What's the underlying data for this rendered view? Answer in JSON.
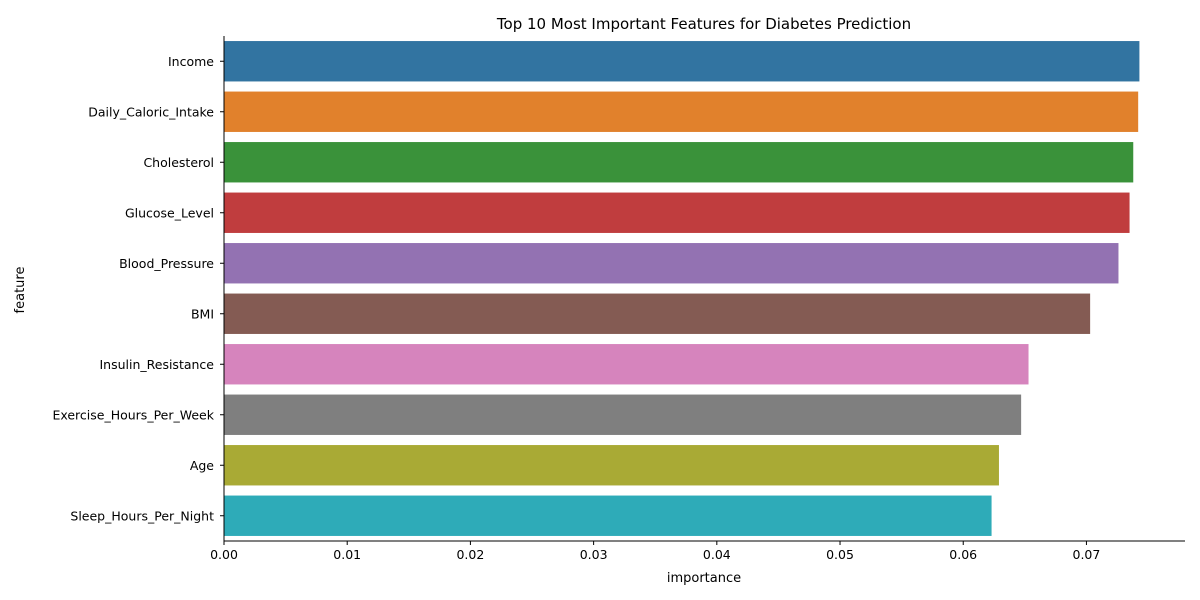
{
  "chart_data": {
    "type": "bar",
    "orientation": "horizontal",
    "title": "Top 10 Most Important Features for Diabetes Prediction",
    "xlabel": "importance",
    "ylabel": "feature",
    "xlim": [
      0,
      0.078
    ],
    "xticks": [
      "0.00",
      "0.01",
      "0.02",
      "0.03",
      "0.04",
      "0.05",
      "0.06",
      "0.07"
    ],
    "grid": false,
    "categories": [
      "Income",
      "Daily_Caloric_Intake",
      "Cholesterol",
      "Glucose_Level",
      "Blood_Pressure",
      "BMI",
      "Insulin_Resistance",
      "Exercise_Hours_Per_Week",
      "Age",
      "Sleep_Hours_Per_Night"
    ],
    "values": [
      0.0743,
      0.0742,
      0.0738,
      0.0735,
      0.0726,
      0.0703,
      0.0653,
      0.0647,
      0.0629,
      0.0623
    ],
    "colors": [
      "#3274a1",
      "#e1812c",
      "#3a923a",
      "#c03d3e",
      "#9372b2",
      "#845b53",
      "#d684bd",
      "#7f7f7f",
      "#a9aa35",
      "#2eabb8"
    ]
  }
}
